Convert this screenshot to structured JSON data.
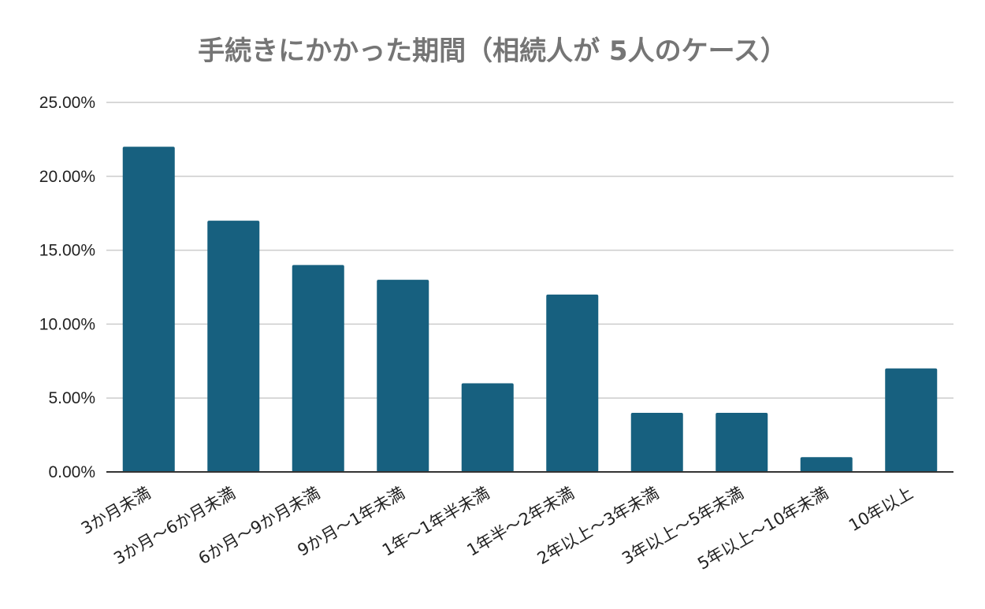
{
  "chart_data": {
    "type": "bar",
    "title": "手続きにかかった期間（相続人が 5人のケース）",
    "xlabel": "",
    "ylabel": "",
    "categories": [
      "3か月未満",
      "3か月〜6か月未満",
      "6か月〜9か月未満",
      "9か月〜1年未満",
      "1年〜1年半未満",
      "1年半〜2年未満",
      "2年以上〜3年未満",
      "3年以上〜5年未満",
      "5年以上〜10年未満",
      "10年以上"
    ],
    "values": [
      22,
      17,
      14,
      13,
      6,
      12,
      4,
      4,
      1,
      7
    ],
    "ylim": [
      0,
      25
    ],
    "yticks": [
      0,
      5,
      10,
      15,
      20,
      25
    ],
    "ytick_labels": [
      "0.00%",
      "5.00%",
      "10.00%",
      "15.00%",
      "20.00%",
      "25.00%"
    ],
    "grid": true,
    "legend": "none",
    "bar_color": "#17607f"
  }
}
